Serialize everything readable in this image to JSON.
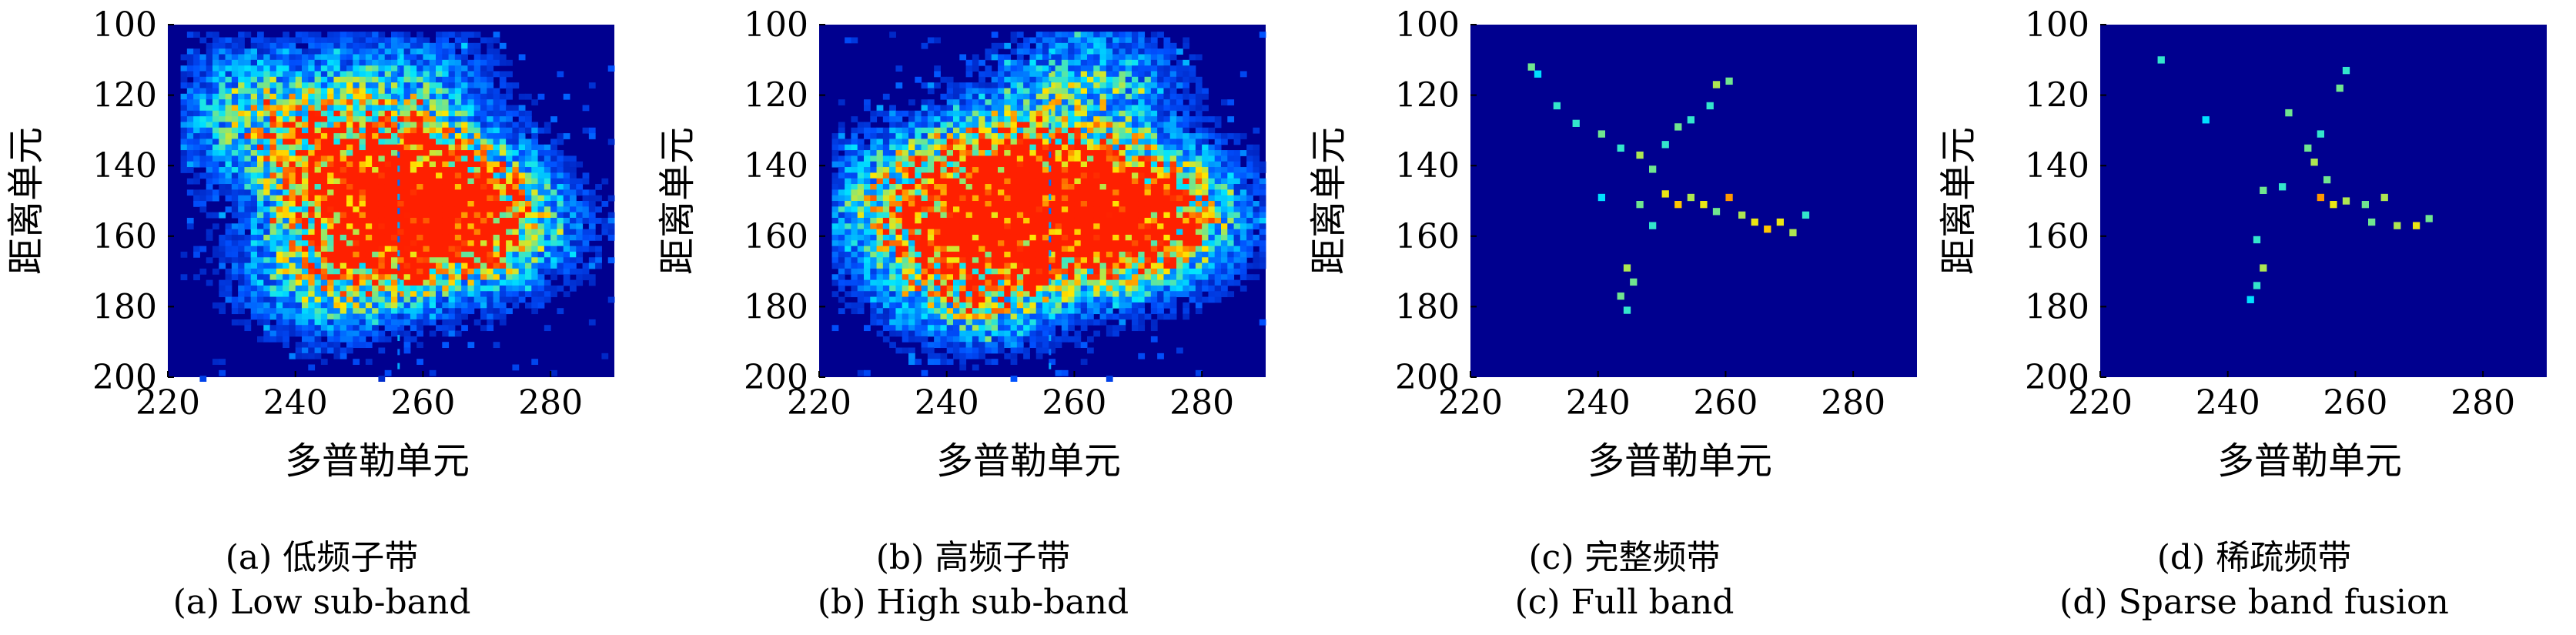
{
  "colors": {
    "background": "#00008f",
    "low": "#0050ff",
    "mid": "#00e5ff",
    "high": "#ffe600",
    "peak": "#ff2000",
    "axis": "#000000"
  },
  "chart_data": [
    {
      "type": "heatmap",
      "caption_cn": "(a) 低频子带",
      "caption_en": "(a) Low sub-band",
      "xlabel": "多普勒单元",
      "ylabel": "距离单元",
      "xlim": [
        220,
        290
      ],
      "ylim": [
        100,
        200
      ],
      "xticks": [
        "220",
        "240",
        "260",
        "280"
      ],
      "yticks": [
        "100",
        "120",
        "140",
        "160",
        "180",
        "200"
      ],
      "blobs": [
        {
          "x": 255,
          "y": 148,
          "intensity": 1.0
        },
        {
          "x": 260,
          "y": 155,
          "intensity": 0.8
        },
        {
          "x": 245,
          "y": 170,
          "intensity": 0.7
        },
        {
          "x": 250,
          "y": 140,
          "intensity": 0.55
        },
        {
          "x": 238,
          "y": 130,
          "intensity": 0.45
        },
        {
          "x": 265,
          "y": 150,
          "intensity": 0.5
        },
        {
          "x": 272,
          "y": 158,
          "intensity": 0.4
        },
        {
          "x": 258,
          "y": 115,
          "intensity": 0.4
        },
        {
          "x": 232,
          "y": 120,
          "intensity": 0.35
        }
      ]
    },
    {
      "type": "heatmap",
      "caption_cn": "(b) 高频子带",
      "caption_en": "(b) High sub-band",
      "xlabel": "多普勒单元",
      "ylabel": "距离单元",
      "xlim": [
        220,
        290
      ],
      "ylim": [
        100,
        200
      ],
      "xticks": [
        "220",
        "240",
        "260",
        "280"
      ],
      "yticks": [
        "100",
        "120",
        "140",
        "160",
        "180",
        "200"
      ],
      "blobs": [
        {
          "x": 244,
          "y": 170,
          "intensity": 1.0
        },
        {
          "x": 268,
          "y": 157,
          "intensity": 0.9
        },
        {
          "x": 262,
          "y": 152,
          "intensity": 0.75
        },
        {
          "x": 252,
          "y": 140,
          "intensity": 0.7
        },
        {
          "x": 248,
          "y": 150,
          "intensity": 0.6
        },
        {
          "x": 262,
          "y": 115,
          "intensity": 0.55
        },
        {
          "x": 238,
          "y": 145,
          "intensity": 0.45
        },
        {
          "x": 275,
          "y": 150,
          "intensity": 0.4
        },
        {
          "x": 230,
          "y": 152,
          "intensity": 0.35
        }
      ]
    },
    {
      "type": "heatmap",
      "caption_cn": "(c) 完整频带",
      "caption_en": "(c) Full band",
      "xlabel": "多普勒单元",
      "ylabel": "距离单元",
      "xlim": [
        220,
        290
      ],
      "ylim": [
        100,
        200
      ],
      "xticks": [
        "220",
        "240",
        "260",
        "280"
      ],
      "yticks": [
        "100",
        "120",
        "140",
        "160",
        "180",
        "200"
      ],
      "points": [
        {
          "x": 229,
          "y": 111,
          "v": 0.6
        },
        {
          "x": 230,
          "y": 113,
          "v": 0.4
        },
        {
          "x": 233,
          "y": 122,
          "v": 0.5
        },
        {
          "x": 236,
          "y": 127,
          "v": 0.5
        },
        {
          "x": 240,
          "y": 130,
          "v": 0.6
        },
        {
          "x": 243,
          "y": 134,
          "v": 0.5
        },
        {
          "x": 246,
          "y": 136,
          "v": 0.7
        },
        {
          "x": 248,
          "y": 140,
          "v": 0.6
        },
        {
          "x": 250,
          "y": 133,
          "v": 0.5
        },
        {
          "x": 252,
          "y": 128,
          "v": 0.6
        },
        {
          "x": 254,
          "y": 126,
          "v": 0.5
        },
        {
          "x": 257,
          "y": 122,
          "v": 0.5
        },
        {
          "x": 258,
          "y": 116,
          "v": 0.7
        },
        {
          "x": 260,
          "y": 115,
          "v": 0.6
        },
        {
          "x": 250,
          "y": 147,
          "v": 0.8
        },
        {
          "x": 252,
          "y": 150,
          "v": 0.9
        },
        {
          "x": 254,
          "y": 148,
          "v": 0.7
        },
        {
          "x": 256,
          "y": 150,
          "v": 0.8
        },
        {
          "x": 258,
          "y": 152,
          "v": 0.6
        },
        {
          "x": 260,
          "y": 148,
          "v": 1.0
        },
        {
          "x": 262,
          "y": 153,
          "v": 0.7
        },
        {
          "x": 264,
          "y": 155,
          "v": 0.8
        },
        {
          "x": 266,
          "y": 157,
          "v": 0.9
        },
        {
          "x": 268,
          "y": 155,
          "v": 0.8
        },
        {
          "x": 270,
          "y": 158,
          "v": 0.7
        },
        {
          "x": 272,
          "y": 153,
          "v": 0.5
        },
        {
          "x": 244,
          "y": 168,
          "v": 0.7
        },
        {
          "x": 245,
          "y": 172,
          "v": 0.6
        },
        {
          "x": 243,
          "y": 176,
          "v": 0.6
        },
        {
          "x": 244,
          "y": 180,
          "v": 0.5
        },
        {
          "x": 246,
          "y": 150,
          "v": 0.6
        },
        {
          "x": 248,
          "y": 156,
          "v": 0.5
        },
        {
          "x": 240,
          "y": 148,
          "v": 0.4
        }
      ]
    },
    {
      "type": "heatmap",
      "caption_cn": "(d) 稀疏频带",
      "caption_en": "(d) Sparse band fusion",
      "xlabel": "多普勒单元",
      "ylabel": "距离单元",
      "xlim": [
        220,
        290
      ],
      "ylim": [
        100,
        200
      ],
      "xticks": [
        "220",
        "240",
        "260",
        "280"
      ],
      "yticks": [
        "100",
        "120",
        "140",
        "160",
        "180",
        "200"
      ],
      "points": [
        {
          "x": 229,
          "y": 109,
          "v": 0.5
        },
        {
          "x": 236,
          "y": 126,
          "v": 0.4
        },
        {
          "x": 249,
          "y": 124,
          "v": 0.6
        },
        {
          "x": 254,
          "y": 130,
          "v": 0.5
        },
        {
          "x": 252,
          "y": 134,
          "v": 0.6
        },
        {
          "x": 253,
          "y": 138,
          "v": 0.7
        },
        {
          "x": 255,
          "y": 143,
          "v": 0.6
        },
        {
          "x": 254,
          "y": 148,
          "v": 1.0
        },
        {
          "x": 256,
          "y": 150,
          "v": 0.8
        },
        {
          "x": 258,
          "y": 149,
          "v": 0.7
        },
        {
          "x": 261,
          "y": 150,
          "v": 0.6
        },
        {
          "x": 264,
          "y": 148,
          "v": 0.7
        },
        {
          "x": 262,
          "y": 155,
          "v": 0.6
        },
        {
          "x": 266,
          "y": 156,
          "v": 0.7
        },
        {
          "x": 269,
          "y": 156,
          "v": 0.8
        },
        {
          "x": 271,
          "y": 154,
          "v": 0.6
        },
        {
          "x": 258,
          "y": 112,
          "v": 0.5
        },
        {
          "x": 257,
          "y": 117,
          "v": 0.6
        },
        {
          "x": 245,
          "y": 146,
          "v": 0.6
        },
        {
          "x": 244,
          "y": 160,
          "v": 0.5
        },
        {
          "x": 245,
          "y": 168,
          "v": 0.7
        },
        {
          "x": 244,
          "y": 173,
          "v": 0.5
        },
        {
          "x": 243,
          "y": 177,
          "v": 0.4
        },
        {
          "x": 248,
          "y": 145,
          "v": 0.5
        }
      ]
    }
  ]
}
